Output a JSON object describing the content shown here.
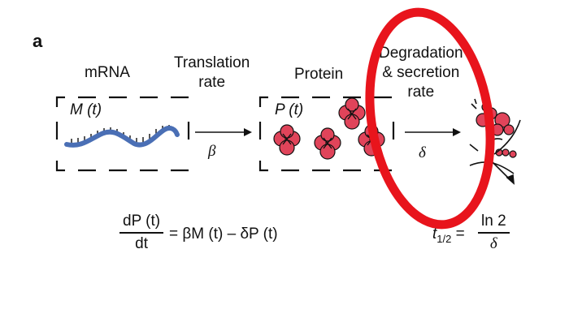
{
  "panel_label": "a",
  "mrna": {
    "title": "mRNA",
    "var": "M (t)"
  },
  "translation": {
    "line1": "Translation",
    "line2": "rate",
    "symbol": "β"
  },
  "protein": {
    "title": "Protein",
    "var": "P (t)"
  },
  "degradation": {
    "line1": "Degradation",
    "line2": "& secretion",
    "line3": "rate",
    "symbol": "δ"
  },
  "equation": {
    "num": "dP (t)",
    "den": "dt",
    "rhs": "= βM (t) – δP (t)"
  },
  "half_life": {
    "lhs": "t",
    "sub": "1/2",
    "eq": " =",
    "num": "ln 2",
    "den": "δ"
  },
  "colors": {
    "mrna": "#4a6fb5",
    "protein": "#e0445a",
    "highlight": "#e8141c"
  }
}
